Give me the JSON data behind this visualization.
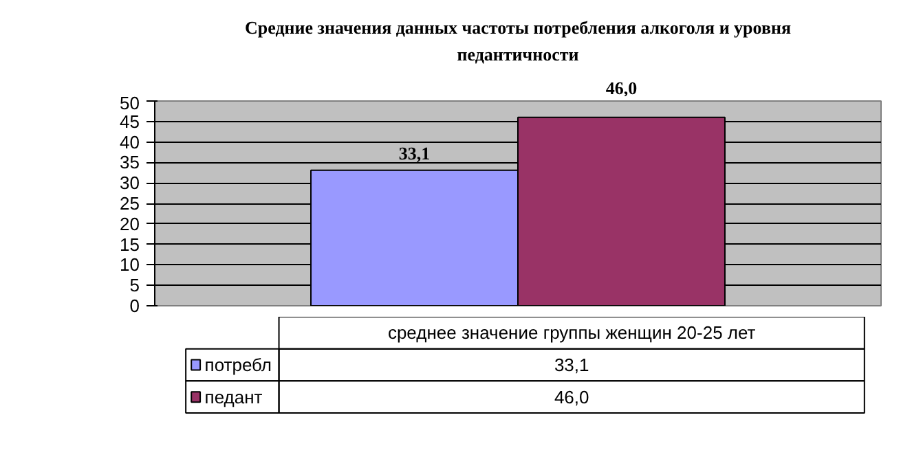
{
  "chart_data": {
    "type": "bar",
    "title": "Средние значения данных частоты потребления алкоголя и уровня педантичности",
    "categories": [
      "среднее значение группы женщин 20-25 лет"
    ],
    "series": [
      {
        "name": "потребл",
        "color": "#9999ff",
        "values": [
          33.1
        ],
        "value_labels": [
          "33,1"
        ]
      },
      {
        "name": "педант",
        "color": "#993366",
        "values": [
          46.0
        ],
        "value_labels": [
          "46,0"
        ]
      }
    ],
    "ylim": [
      0,
      50
    ],
    "yticks": [
      0,
      5,
      10,
      15,
      20,
      25,
      30,
      35,
      40,
      45,
      50
    ],
    "grid": "y",
    "legend": "bottom"
  }
}
